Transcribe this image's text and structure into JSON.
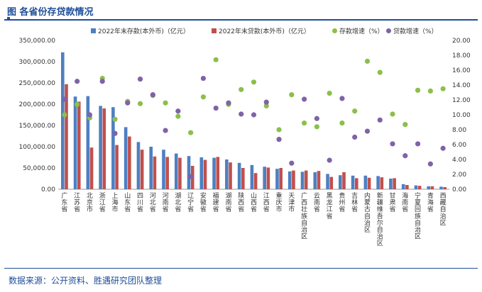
{
  "header": {
    "title": "图  各省份存贷款情况"
  },
  "footer": {
    "source": "数据来源：公开资料、胜遇研究团队整理"
  },
  "colors": {
    "deposit_bar": "#4e7fc1",
    "loan_bar": "#c0504d",
    "deposit_growth": "#8cbf4a",
    "loan_growth": "#7f62a8",
    "axis_text": "#333333",
    "title": "#1f4e99"
  },
  "chart_data": {
    "type": "bar",
    "categories": [
      "广东省",
      "江苏省",
      "北京市",
      "浙江省",
      "上海市",
      "山东省",
      "四川省",
      "河北省",
      "河南省",
      "湖北省",
      "辽宁省",
      "安徽省",
      "福建省",
      "湖南省",
      "陕西省",
      "山西省",
      "江西省",
      "重庆市",
      "天津市",
      "广西壮族自治区",
      "云南省",
      "黑龙江省",
      "贵州省",
      "吉林省",
      "内蒙古自治区",
      "新疆维吾尔自治区",
      "甘肃省",
      "海南省",
      "宁夏回族自治区",
      "青海省",
      "西藏自治区"
    ],
    "series": [
      {
        "name": "2022年末存款(本外币)（亿元）",
        "type": "bar",
        "axis": "left",
        "values": [
          322000,
          218000,
          219000,
          196000,
          193000,
          146000,
          111000,
          100000,
          93000,
          84000,
          78000,
          75000,
          74000,
          70000,
          62000,
          57000,
          53000,
          48000,
          42000,
          41000,
          40000,
          36000,
          33000,
          32000,
          32000,
          31000,
          25000,
          12000,
          9000,
          7000,
          6000
        ]
      },
      {
        "name": "2022年末贷款(本外币)（亿元）",
        "type": "bar",
        "axis": "left",
        "values": [
          247000,
          206000,
          98000,
          190000,
          104000,
          124000,
          93000,
          77000,
          76000,
          74000,
          55000,
          69000,
          76000,
          63000,
          50000,
          38000,
          51000,
          50000,
          44000,
          44000,
          43000,
          29000,
          40000,
          26000,
          27000,
          28000,
          26000,
          10000,
          8000,
          7000,
          5000
        ]
      },
      {
        "name": "存款增速（%）",
        "type": "scatter",
        "axis": "right",
        "values": [
          10.0,
          11.4,
          9.6,
          14.9,
          9.4,
          11.8,
          11.5,
          12.6,
          11.6,
          9.8,
          7.6,
          12.4,
          17.4,
          11.4,
          13.4,
          14.4,
          11.2,
          8.0,
          12.7,
          8.9,
          8.4,
          12.9,
          8.9,
          10.5,
          17.2,
          15.7,
          10.1,
          8.7,
          13.3,
          13.2,
          13.5
        ]
      },
      {
        "name": "贷款增速（%）",
        "type": "scatter",
        "axis": "right",
        "values": [
          12.1,
          14.5,
          10.0,
          14.5,
          7.5,
          11.6,
          14.8,
          12.7,
          7.9,
          10.5,
          1.7,
          14.9,
          10.9,
          11.6,
          10.1,
          10.0,
          11.7,
          6.7,
          3.5,
          12.1,
          9.5,
          3.9,
          12.2,
          7.0,
          7.8,
          9.3,
          6.1,
          4.5,
          6.1,
          3.4,
          5.5
        ]
      }
    ],
    "y_left": {
      "min": 0,
      "max": 350000,
      "step": 50000,
      "tick_labels": [
        "0.00",
        "50,000.00",
        "100,000.00",
        "150,000.00",
        "200,000.00",
        "250,000.00",
        "300,000.00",
        "350,000.00"
      ]
    },
    "y_right": {
      "min": 0,
      "max": 20,
      "step": 2,
      "tick_labels": [
        "0.00",
        "2.00",
        "4.00",
        "6.00",
        "8.00",
        "10.00",
        "12.00",
        "14.00",
        "16.00",
        "18.00",
        "20.00"
      ]
    },
    "grid": false,
    "legend_position": "top"
  }
}
